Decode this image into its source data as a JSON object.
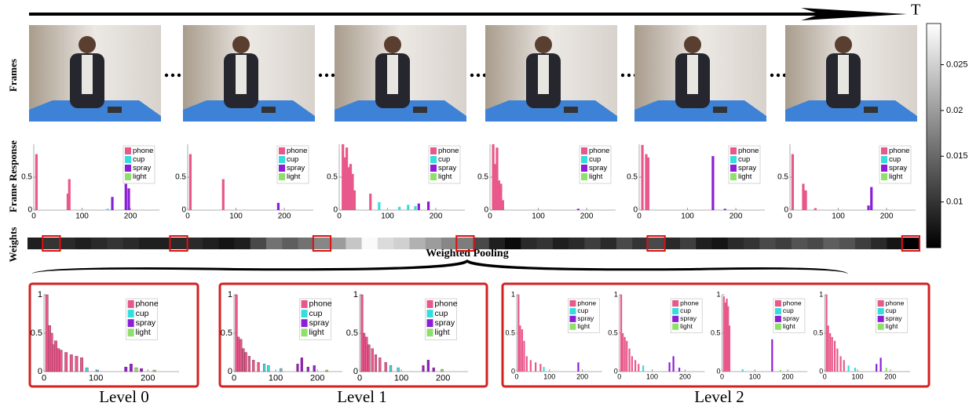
{
  "arrow_label": "T",
  "row_labels": [
    "Frames",
    "Frame Response",
    "Weights"
  ],
  "legend": [
    "phone",
    "cup",
    "spray",
    "light"
  ],
  "legend_colors": [
    "#e8588a",
    "#33dede",
    "#8a1fd6",
    "#8fe06a"
  ],
  "frame_axis": {
    "xlim": [
      0,
      260
    ],
    "ylim": [
      0,
      1
    ],
    "xticks": [
      0,
      100,
      200
    ],
    "yticks": [
      0,
      0.5
    ]
  },
  "level_axis": {
    "xlim": [
      0,
      260
    ],
    "ylim": [
      0,
      1
    ],
    "xticks": [
      0,
      100,
      200
    ],
    "yticks": [
      0,
      0.5,
      1
    ]
  },
  "frame_responses": [
    {
      "bars": [
        [
          3,
          0.85,
          0
        ],
        [
          68,
          0.25,
          0
        ],
        [
          71,
          0.47,
          0
        ],
        [
          150,
          0.02,
          1
        ],
        [
          160,
          0.2,
          2
        ],
        [
          188,
          0.4,
          2
        ],
        [
          194,
          0.33,
          2
        ]
      ]
    },
    {
      "bars": [
        [
          3,
          0.85,
          0
        ],
        [
          71,
          0.47,
          0
        ],
        [
          185,
          0.11,
          2
        ]
      ]
    },
    {
      "bars": [
        [
          5,
          1.0,
          0
        ],
        [
          9,
          0.8,
          0
        ],
        [
          13,
          0.95,
          0
        ],
        [
          17,
          0.65,
          0
        ],
        [
          21,
          0.7,
          0
        ],
        [
          25,
          0.55,
          0
        ],
        [
          29,
          0.3,
          0
        ],
        [
          62,
          0.25,
          0
        ],
        [
          80,
          0.12,
          1
        ],
        [
          122,
          0.05,
          1
        ],
        [
          140,
          0.08,
          1
        ],
        [
          155,
          0.06,
          1
        ],
        [
          162,
          0.1,
          2
        ],
        [
          182,
          0.13,
          2
        ]
      ]
    },
    {
      "bars": [
        [
          4,
          1.0,
          0
        ],
        [
          8,
          0.7,
          0
        ],
        [
          12,
          0.95,
          0
        ],
        [
          16,
          0.45,
          0
        ],
        [
          20,
          0.4,
          0
        ],
        [
          24,
          0.15,
          0
        ],
        [
          180,
          0.02,
          2
        ]
      ]
    },
    {
      "bars": [
        [
          4,
          0.99,
          0
        ],
        [
          12,
          0.85,
          0
        ],
        [
          16,
          0.8,
          0
        ],
        [
          150,
          0.82,
          2
        ],
        [
          175,
          0.02,
          2
        ]
      ]
    },
    {
      "bars": [
        [
          3,
          0.85,
          0
        ],
        [
          25,
          0.4,
          0
        ],
        [
          30,
          0.3,
          0
        ],
        [
          50,
          0.03,
          0
        ],
        [
          160,
          0.07,
          2
        ],
        [
          166,
          0.35,
          2
        ]
      ]
    }
  ],
  "weighted_pooling": "Weighted Pooling",
  "weights": {
    "lim": [
      0.005,
      0.0295
    ],
    "values": [
      0.008,
      0.01,
      0.009,
      0.008,
      0.009,
      0.01,
      0.009,
      0.008,
      0.008,
      0.009,
      0.009,
      0.008,
      0.007,
      0.008,
      0.012,
      0.016,
      0.014,
      0.016,
      0.018,
      0.02,
      0.024,
      0.029,
      0.026,
      0.025,
      0.022,
      0.02,
      0.018,
      0.017,
      0.012,
      0.008,
      0.006,
      0.009,
      0.01,
      0.008,
      0.009,
      0.011,
      0.009,
      0.012,
      0.01,
      0.012,
      0.009,
      0.011,
      0.008,
      0.007,
      0.009,
      0.01,
      0.012,
      0.011,
      0.013,
      0.012,
      0.014,
      0.013,
      0.011,
      0.009,
      0.007,
      0.005
    ],
    "highlighted": [
      1,
      9,
      18,
      27,
      39,
      55
    ],
    "colorbar_ticks": [
      {
        "value": 0.025,
        "label": "0.025"
      },
      {
        "value": 0.02,
        "label": "0.02"
      },
      {
        "value": 0.015,
        "label": "0.015"
      },
      {
        "value": 0.01,
        "label": "0.01"
      }
    ]
  },
  "levels": [
    {
      "label": "Level 0",
      "plots": [
        {
          "bars": [
            [
              3,
              1,
              0
            ],
            [
              8,
              0.6,
              0
            ],
            [
              12,
              0.5,
              0
            ],
            [
              16,
              0.35,
              0
            ],
            [
              20,
              0.4,
              0
            ],
            [
              25,
              0.3,
              0
            ],
            [
              30,
              0.28,
              0
            ],
            [
              40,
              0.25,
              0
            ],
            [
              50,
              0.22,
              0
            ],
            [
              60,
              0.2,
              0
            ],
            [
              70,
              0.18,
              0
            ],
            [
              80,
              0.05,
              1
            ],
            [
              100,
              0.02,
              1
            ],
            [
              155,
              0.06,
              2
            ],
            [
              165,
              0.1,
              2
            ],
            [
              175,
              0.05,
              3
            ],
            [
              185,
              0.04,
              2
            ],
            [
              210,
              0.02,
              3
            ]
          ]
        }
      ]
    },
    {
      "label": "Level 1",
      "plots": [
        {
          "bars": [
            [
              3,
              1,
              0
            ],
            [
              8,
              0.45,
              0
            ],
            [
              14,
              0.42,
              0
            ],
            [
              20,
              0.3,
              0
            ],
            [
              26,
              0.25,
              0
            ],
            [
              34,
              0.2,
              0
            ],
            [
              44,
              0.15,
              0
            ],
            [
              56,
              0.12,
              0
            ],
            [
              70,
              0.1,
              1
            ],
            [
              80,
              0.08,
              1
            ],
            [
              110,
              0.04,
              1
            ],
            [
              150,
              0.1,
              2
            ],
            [
              160,
              0.18,
              2
            ],
            [
              175,
              0.06,
              2
            ],
            [
              190,
              0.08,
              2
            ],
            [
              220,
              0.02,
              3
            ]
          ]
        },
        {
          "bars": [
            [
              3,
              1,
              0
            ],
            [
              8,
              0.5,
              0
            ],
            [
              14,
              0.45,
              0
            ],
            [
              20,
              0.35,
              0
            ],
            [
              28,
              0.3,
              0
            ],
            [
              36,
              0.22,
              0
            ],
            [
              46,
              0.18,
              0
            ],
            [
              60,
              0.12,
              0
            ],
            [
              72,
              0.08,
              1
            ],
            [
              90,
              0.05,
              1
            ],
            [
              150,
              0.08,
              2
            ],
            [
              162,
              0.15,
              2
            ],
            [
              175,
              0.05,
              2
            ],
            [
              195,
              0.03,
              3
            ]
          ]
        }
      ]
    },
    {
      "label": "Level 2",
      "plots": [
        {
          "bars": [
            [
              3,
              1,
              0
            ],
            [
              8,
              0.6,
              0
            ],
            [
              14,
              0.55,
              0
            ],
            [
              20,
              0.4,
              0
            ],
            [
              28,
              0.2,
              0
            ],
            [
              40,
              0.15,
              0
            ],
            [
              55,
              0.12,
              0
            ],
            [
              70,
              0.1,
              0
            ],
            [
              80,
              0.06,
              1
            ],
            [
              185,
              0.12,
              2
            ]
          ]
        },
        {
          "bars": [
            [
              3,
              1,
              0
            ],
            [
              8,
              0.5,
              0
            ],
            [
              14,
              0.45,
              0
            ],
            [
              20,
              0.4,
              0
            ],
            [
              28,
              0.3,
              0
            ],
            [
              36,
              0.2,
              0
            ],
            [
              46,
              0.15,
              0
            ],
            [
              56,
              0.1,
              0
            ],
            [
              70,
              0.08,
              1
            ],
            [
              150,
              0.12,
              2
            ],
            [
              162,
              0.2,
              2
            ],
            [
              180,
              0.05,
              2
            ]
          ]
        },
        {
          "bars": [
            [
              3,
              0.98,
              0
            ],
            [
              8,
              0.9,
              0
            ],
            [
              12,
              0.95,
              0
            ],
            [
              16,
              0.85,
              0
            ],
            [
              20,
              0.6,
              0
            ],
            [
              60,
              0.03,
              1
            ],
            [
              150,
              0.42,
              2
            ],
            [
              175,
              0.02,
              3
            ]
          ]
        },
        {
          "bars": [
            [
              3,
              1,
              0
            ],
            [
              8,
              0.6,
              0
            ],
            [
              14,
              0.5,
              0
            ],
            [
              20,
              0.45,
              0
            ],
            [
              28,
              0.4,
              0
            ],
            [
              36,
              0.3,
              0
            ],
            [
              46,
              0.2,
              0
            ],
            [
              56,
              0.15,
              0
            ],
            [
              70,
              0.08,
              1
            ],
            [
              90,
              0.05,
              1
            ],
            [
              155,
              0.1,
              2
            ],
            [
              168,
              0.18,
              2
            ],
            [
              185,
              0.05,
              3
            ]
          ]
        }
      ]
    }
  ]
}
